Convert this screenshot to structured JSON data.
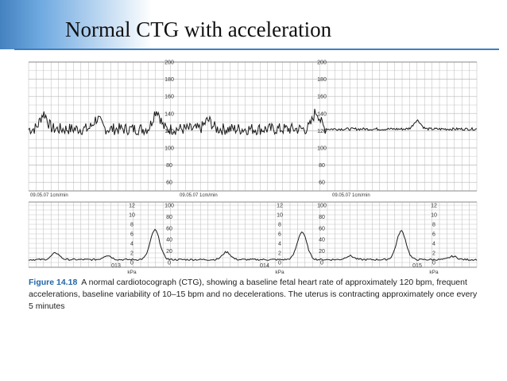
{
  "slide": {
    "title": "Normal CTG with acceleration"
  },
  "strip": {
    "date_label": "09.05.07 1cm/min",
    "fhr_scale": [
      "200",
      "180",
      "160",
      "140",
      "120",
      "100",
      "80",
      "60"
    ],
    "uc_scale_kpa": [
      "12",
      "10",
      "8",
      "6",
      "4",
      "2",
      "0"
    ],
    "uc_scale_mmhg": [
      "100",
      "80",
      "60",
      "40",
      "20",
      "0"
    ],
    "kpa_unit": "kPa",
    "page_numbers": [
      "013",
      "014",
      "015"
    ]
  },
  "caption": {
    "figure_label": "Figure 14.18",
    "text": "A normal cardiotocograph (CTG), showing a baseline fetal heart rate of approximately 120 bpm, frequent accelerations, baseline variability of 10–15 bpm and no decelerations. The uterus is contracting approximately once every 5 minutes"
  },
  "colors": {
    "title_accent": "#2f73b8",
    "grid": "#b8b8b8",
    "trace": "#1a1a1a",
    "caption_label": "#2266aa"
  }
}
